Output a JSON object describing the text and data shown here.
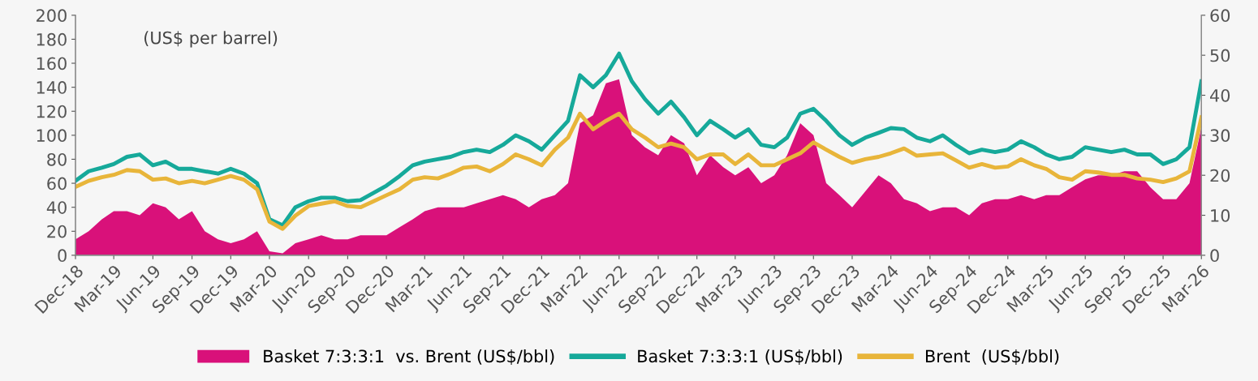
{
  "chart_data": {
    "type": "line",
    "annotations": [
      "(US$ per barrel)"
    ],
    "x": [
      "2018-12",
      "2019-01",
      "2019-02",
      "2019-03",
      "2019-04",
      "2019-05",
      "2019-06",
      "2019-07",
      "2019-08",
      "2019-09",
      "2019-10",
      "2019-11",
      "2019-12",
      "2020-01",
      "2020-02",
      "2020-03",
      "2020-04",
      "2020-05",
      "2020-06",
      "2020-07",
      "2020-08",
      "2020-09",
      "2020-10",
      "2020-11",
      "2020-12",
      "2021-01",
      "2021-02",
      "2021-03",
      "2021-04",
      "2021-05",
      "2021-06",
      "2021-07",
      "2021-08",
      "2021-09",
      "2021-10",
      "2021-11",
      "2021-12",
      "2022-01",
      "2022-02",
      "2022-03",
      "2022-04",
      "2022-05",
      "2022-06",
      "2022-07",
      "2022-08",
      "2022-09",
      "2022-10",
      "2022-11",
      "2022-12",
      "2023-01",
      "2023-02",
      "2023-03",
      "2023-04",
      "2023-05",
      "2023-06",
      "2023-07",
      "2023-08",
      "2023-09",
      "2023-10",
      "2023-11",
      "2023-12",
      "2024-01",
      "2024-02",
      "2024-03",
      "2024-04",
      "2024-05",
      "2024-06",
      "2024-07",
      "2024-08",
      "2024-09",
      "2024-10",
      "2024-11",
      "2024-12",
      "2025-01",
      "2025-02",
      "2025-03",
      "2025-04",
      "2025-05",
      "2025-06",
      "2025-07",
      "2025-08",
      "2025-09",
      "2025-10",
      "2025-11",
      "2025-12",
      "2026-01",
      "2026-02",
      "2026-03"
    ],
    "series": [
      {
        "name": "Basket 7:3:3:1  vs. Brent (US$/bbl)",
        "type": "area",
        "axis": "y2",
        "color": "#d9117a",
        "values": [
          4,
          6,
          9,
          11,
          11,
          10,
          13,
          12,
          9,
          11,
          6,
          4,
          3,
          4,
          6,
          1,
          0.5,
          3,
          4,
          5,
          4,
          4,
          5,
          5,
          5,
          7,
          9,
          11,
          12,
          12,
          12,
          13,
          14,
          15,
          14,
          12,
          14,
          15,
          18,
          33,
          35,
          43,
          44,
          30,
          27,
          25,
          30,
          28,
          20,
          25,
          22,
          20,
          22,
          18,
          20,
          25,
          33,
          30,
          18,
          15,
          12,
          16,
          20,
          18,
          14,
          13,
          11,
          12,
          12,
          10,
          13,
          14,
          14,
          15,
          14,
          15,
          15,
          17,
          19,
          20,
          20,
          21,
          21,
          17,
          14,
          14,
          18,
          32
        ]
      },
      {
        "name": "Basket 7:3:3:1 (US$/bbl)",
        "color": "#16a99a",
        "values": [
          62,
          70,
          73,
          76,
          82,
          84,
          75,
          78,
          72,
          72,
          70,
          68,
          72,
          68,
          60,
          30,
          25,
          40,
          45,
          48,
          48,
          45,
          46,
          52,
          58,
          66,
          75,
          78,
          80,
          82,
          86,
          88,
          86,
          92,
          100,
          95,
          88,
          100,
          112,
          150,
          140,
          150,
          168,
          145,
          130,
          118,
          128,
          115,
          100,
          112,
          105,
          98,
          105,
          92,
          90,
          98,
          118,
          122,
          112,
          100,
          92,
          98,
          102,
          106,
          105,
          98,
          95,
          100,
          92,
          85,
          88,
          86,
          88,
          95,
          90,
          84,
          80,
          82,
          90,
          88,
          86,
          88,
          84,
          84,
          76,
          80,
          90,
          145
        ]
      },
      {
        "name": "Brent  (US$/bbl)",
        "color": "#e8b53a",
        "values": [
          57,
          62,
          65,
          67,
          71,
          70,
          63,
          64,
          60,
          62,
          60,
          63,
          66,
          63,
          55,
          28,
          22,
          33,
          41,
          43,
          45,
          41,
          40,
          45,
          50,
          55,
          63,
          65,
          64,
          68,
          73,
          74,
          70,
          76,
          84,
          80,
          75,
          88,
          98,
          118,
          105,
          112,
          118,
          105,
          98,
          90,
          93,
          90,
          80,
          84,
          84,
          76,
          84,
          75,
          75,
          80,
          85,
          94,
          88,
          82,
          77,
          80,
          82,
          85,
          89,
          83,
          84,
          85,
          79,
          73,
          76,
          73,
          74,
          80,
          75,
          72,
          65,
          63,
          70,
          69,
          67,
          67,
          64,
          63,
          61,
          64,
          70,
          115
        ]
      }
    ],
    "xlim": [
      "2018-12",
      "2026-03"
    ],
    "xticks": [
      {
        "value": "2018-12",
        "label": "Dec-18"
      },
      {
        "value": "2019-03",
        "label": "Mar-19"
      },
      {
        "value": "2019-06",
        "label": "Jun-19"
      },
      {
        "value": "2019-09",
        "label": "Sep-19"
      },
      {
        "value": "2019-12",
        "label": "Dec-19"
      },
      {
        "value": "2020-03",
        "label": "Mar-20"
      },
      {
        "value": "2020-06",
        "label": "Jun-20"
      },
      {
        "value": "2020-09",
        "label": "Sep-20"
      },
      {
        "value": "2020-12",
        "label": "Dec-20"
      },
      {
        "value": "2021-03",
        "label": "Mar-21"
      },
      {
        "value": "2021-06",
        "label": "Jun-21"
      },
      {
        "value": "2021-09",
        "label": "Sep-21"
      },
      {
        "value": "2021-12",
        "label": "Dec-21"
      },
      {
        "value": "2022-03",
        "label": "Mar-22"
      },
      {
        "value": "2022-06",
        "label": "Jun-22"
      },
      {
        "value": "2022-09",
        "label": "Sep-22"
      },
      {
        "value": "2022-12",
        "label": "Dec-22"
      },
      {
        "value": "2023-03",
        "label": "Mar-23"
      },
      {
        "value": "2023-06",
        "label": "Jun-23"
      },
      {
        "value": "2023-09",
        "label": "Sep-23"
      },
      {
        "value": "2023-12",
        "label": "Dec-23"
      },
      {
        "value": "2024-03",
        "label": "Mar-24"
      },
      {
        "value": "2024-06",
        "label": "Jun-24"
      },
      {
        "value": "2024-09",
        "label": "Sep-24"
      },
      {
        "value": "2024-12",
        "label": "Dec-24"
      },
      {
        "value": "2025-03",
        "label": "Mar-25"
      },
      {
        "value": "2025-06",
        "label": "Jun-25"
      },
      {
        "value": "2025-09",
        "label": "Sep-25"
      },
      {
        "value": "2025-12",
        "label": "Dec-25"
      },
      {
        "value": "2026-03",
        "label": "Mar-26"
      }
    ],
    "ylim": [
      0,
      200
    ],
    "yticks": [
      0,
      20,
      40,
      60,
      80,
      100,
      120,
      140,
      160,
      180,
      200
    ],
    "y2lim": [
      0,
      60
    ],
    "y2ticks": [
      0,
      10,
      20,
      30,
      40,
      50,
      60
    ],
    "grid": false,
    "legend": "bottom",
    "marker": "none",
    "line_style": "solid"
  }
}
